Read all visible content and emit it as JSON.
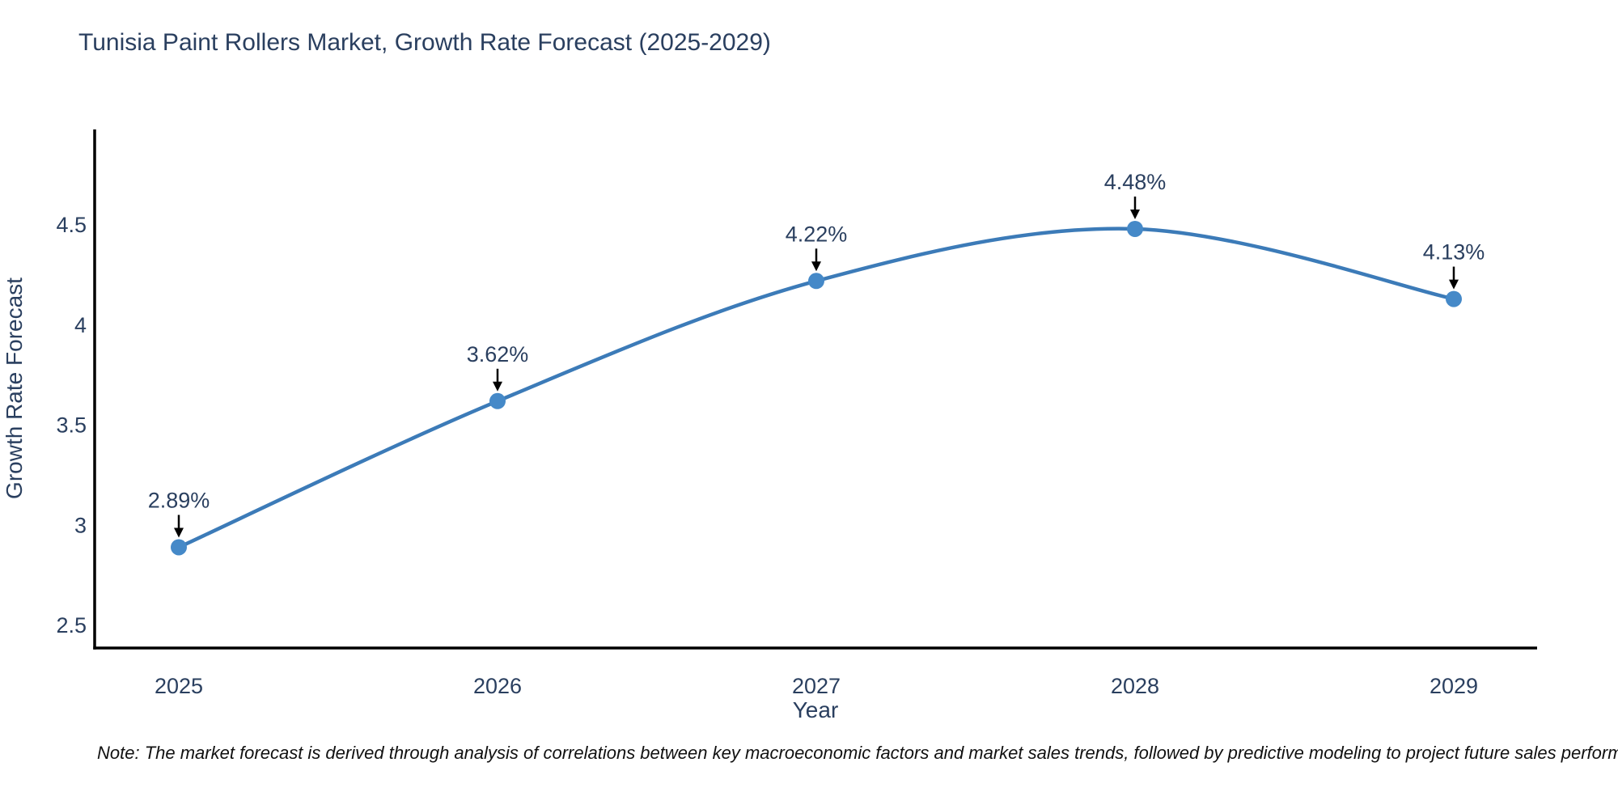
{
  "note": "Note: The market forecast is derived through analysis of correlations between key macroeconomic factors and market sales trends, followed by predictive modeling to project future sales performance.",
  "chart_data": {
    "type": "line",
    "title": "Tunisia Paint Rollers Market, Growth Rate Forecast (2025-2029)",
    "xlabel": "Year",
    "ylabel": "Growth Rate Forecast",
    "x": [
      2025,
      2026,
      2027,
      2028,
      2029
    ],
    "series": [
      {
        "name": "Growth Rate Forecast",
        "values": [
          2.89,
          3.62,
          4.22,
          4.48,
          4.13
        ],
        "point_labels": [
          "2.89%",
          "3.62%",
          "4.22%",
          "4.48%",
          "4.13%"
        ]
      }
    ],
    "yticks": [
      2.5,
      3,
      3.5,
      4,
      4.5
    ],
    "ylim": [
      2.39,
      4.98
    ],
    "line_shape": "spline",
    "markers": true,
    "grid": false,
    "legend": false,
    "annotations_style": "value label with down arrow above each point",
    "colors": {
      "line": "#3c7bb8",
      "marker": "#4589c8",
      "axis_line": "#000000",
      "text": "#2a3f5f",
      "annotation_text": "#2a3f5f",
      "annotation_arrow": "#000000",
      "background": "#ffffff"
    }
  }
}
